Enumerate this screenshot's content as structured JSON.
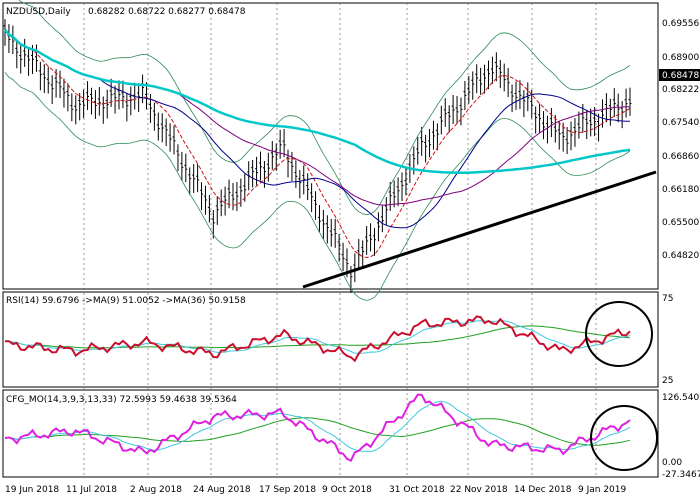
{
  "main": {
    "symbol_header": "NZDUSD,Daily",
    "ohlc": "0.68282 0.68722 0.68277 0.68478",
    "price_ticks": [
      "0.69556",
      "0.68900",
      "0.68222",
      "0.67540",
      "0.66860",
      "0.66180",
      "0.65500",
      "0.64820"
    ],
    "price_range": [
      0.6404,
      0.7005
    ],
    "current_price": "0.68478"
  },
  "rsi": {
    "label": "RSI(14) 59.6796 ->MA(9) 51.0052 ->MA(36) 50.9158",
    "ticks": [
      "75",
      "25"
    ]
  },
  "cfg": {
    "label": "CFG_MO(14,3,9,3,13,33) 72.5993 59.4638 39.5364",
    "ticks": [
      "126.5409",
      "0.00",
      "-27.3467"
    ]
  },
  "date_labels": [
    "19 Jun 2018",
    "11 Jul 2018",
    "2 Aug 2018",
    "24 Aug 2018",
    "17 Sep 2018",
    "9 Oct 2018",
    "31 Oct 2018",
    "22 Nov 2018",
    "14 Dec 2018",
    "9 Jan 2019"
  ],
  "colors": {
    "bars": "#000000",
    "ma_long": "#00c8c8",
    "ma_mid": "#800080",
    "ma_slow": "#00008b",
    "ma_fast": "#d01010",
    "bands": "#2e8b57",
    "trendline": "#000000",
    "rsi_line": "#c8102e",
    "rsi_ma_fast": "#40c8e0",
    "rsi_ma_slow": "#20a020",
    "cfg_line": "#e020e0",
    "cfg_sig1": "#40c8e0",
    "cfg_sig2": "#20a020",
    "ellipse": "#000000"
  },
  "chart_data": [
    {
      "type": "line",
      "title": "NZDUSD,Daily",
      "x": [
        "19 Jun 2018",
        "11 Jul 2018",
        "2 Aug 2018",
        "24 Aug 2018",
        "17 Sep 2018",
        "9 Oct 2018",
        "31 Oct 2018",
        "22 Nov 2018",
        "14 Dec 2018",
        "9 Jan 2019"
      ],
      "series": [
        {
          "values": [
            0.6935,
            0.679,
            0.681,
            0.656,
            0.67,
            0.644,
            0.67,
            0.687,
            0.672,
            0.68
          ]
        }
      ],
      "ylim": [
        0.6404,
        0.7005
      ]
    },
    {
      "type": "line",
      "title": "RSI(14) 59.6796 ->MA(9) 51.0052 ->MA(36) 50.9158",
      "x": [
        "19 Jun 2018",
        "11 Jul 2018",
        "2 Aug 2018",
        "24 Aug 2018",
        "17 Sep 2018",
        "9 Oct 2018",
        "31 Oct 2018",
        "22 Nov 2018",
        "14 Dec 2018",
        "9 Jan 2019"
      ],
      "series": [
        {
          "values": [
            45,
            38,
            47,
            35,
            55,
            32,
            66,
            71,
            38,
            59.68
          ]
        }
      ],
      "ylim": [
        0,
        100
      ]
    },
    {
      "type": "line",
      "title": "CFG_MO(14,3,9,3,13,33) 72.5993 59.4638 39.5364",
      "x": [
        "19 Jun 2018",
        "11 Jul 2018",
        "2 Aug 2018",
        "24 Aug 2018",
        "17 Sep 2018",
        "9 Oct 2018",
        "31 Oct 2018",
        "22 Nov 2018",
        "14 Dec 2018",
        "9 Jan 2019"
      ],
      "series": [
        {
          "values": [
            40,
            55,
            15,
            80,
            85,
            5,
            118,
            30,
            20,
            72.6
          ]
        }
      ],
      "ylim": [
        -27.3467,
        126.5409
      ]
    }
  ]
}
